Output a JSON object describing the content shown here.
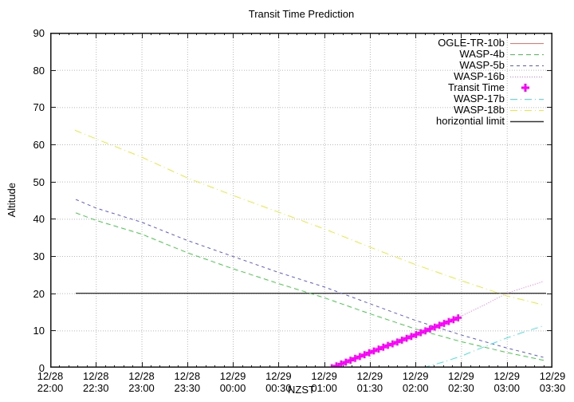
{
  "title": "Transit Time Prediction",
  "axes": {
    "ylabel": "Altitude",
    "xlabel": "NZST",
    "ylim": [
      0,
      90
    ],
    "y_tick_step": 10,
    "y_ticks": [
      "0",
      "10",
      "20",
      "30",
      "40",
      "50",
      "60",
      "70",
      "80",
      "90"
    ],
    "xlim_hours": [
      0,
      5.5
    ],
    "x_minor_step_hours": 0.1,
    "x_ticks": [
      {
        "t": 0.0,
        "date": "12/28",
        "time": "22:00"
      },
      {
        "t": 0.5,
        "date": "12/28",
        "time": "22:30"
      },
      {
        "t": 1.0,
        "date": "12/28",
        "time": "23:00"
      },
      {
        "t": 1.5,
        "date": "12/28",
        "time": "23:30"
      },
      {
        "t": 2.0,
        "date": "12/29",
        "time": "00:00"
      },
      {
        "t": 2.5,
        "date": "12/29",
        "time": "00:30"
      },
      {
        "t": 3.0,
        "date": "12/29",
        "time": "01:00"
      },
      {
        "t": 3.5,
        "date": "12/29",
        "time": "01:30"
      },
      {
        "t": 4.0,
        "date": "12/29",
        "time": "02:00"
      },
      {
        "t": 4.5,
        "date": "12/29",
        "time": "02:30"
      },
      {
        "t": 5.0,
        "date": "12/29",
        "time": "03:00"
      },
      {
        "t": 5.5,
        "date": "12/29",
        "time": "03:30"
      }
    ],
    "grid": true
  },
  "colors": {
    "background": "#ffffff",
    "border": "#1a1a1a",
    "grid": "#b8b8b8",
    "text": "#000000"
  },
  "legend": {
    "position": "top-right-inside",
    "items": [
      {
        "label": "OGLE-TR-10b",
        "series": "OGLE-TR-10b"
      },
      {
        "label": "WASP-4b",
        "series": "WASP-4b"
      },
      {
        "label": "WASP-5b",
        "series": "WASP-5b"
      },
      {
        "label": "WASP-16b",
        "series": "WASP-16b"
      },
      {
        "label": "Transit Time",
        "series": "Transit Time"
      },
      {
        "label": "WASP-17b",
        "series": "WASP-17b"
      },
      {
        "label": "WASP-18b",
        "series": "WASP-18b"
      },
      {
        "label": "horizontial limit",
        "series": "horizontial limit"
      }
    ]
  },
  "chart_data": {
    "type": "line",
    "x_unit": "hours after 12/28 22:00 NZST",
    "y_unit": "altitude (degrees)",
    "series": [
      {
        "name": "horizontial limit",
        "color": "#333333",
        "dash": "",
        "kind": "line",
        "width": 1.4,
        "points": [
          [
            0.28,
            20
          ],
          [
            5.43,
            20
          ]
        ]
      },
      {
        "name": "OGLE-TR-10b",
        "color": "#ff6e5f",
        "dash": "",
        "kind": "line",
        "width": 1,
        "points": []
      },
      {
        "name": "WASP-4b",
        "color": "#46cc49",
        "dash": "6,4",
        "kind": "line",
        "width": 1,
        "points": [
          [
            0.28,
            41.6
          ],
          [
            0.5,
            39.6
          ],
          [
            1.0,
            35.9
          ],
          [
            1.5,
            30.9
          ],
          [
            2.0,
            26.6
          ],
          [
            2.5,
            22.6
          ],
          [
            3.0,
            18.8
          ],
          [
            3.5,
            14.5
          ],
          [
            4.0,
            10.4
          ],
          [
            4.5,
            7.0
          ],
          [
            5.0,
            4.1
          ],
          [
            5.42,
            1.9
          ]
        ]
      },
      {
        "name": "WASP-5b",
        "color": "#5b5bd8",
        "dash": "4,4",
        "kind": "line",
        "width": 1,
        "points": [
          [
            0.28,
            45.2
          ],
          [
            0.5,
            42.9
          ],
          [
            1.0,
            39.1
          ],
          [
            1.5,
            34.2
          ],
          [
            2.0,
            29.9
          ],
          [
            2.5,
            25.6
          ],
          [
            3.0,
            21.7
          ],
          [
            3.5,
            17.2
          ],
          [
            4.0,
            12.7
          ],
          [
            4.5,
            8.8
          ],
          [
            5.0,
            5.3
          ],
          [
            5.4,
            2.8
          ]
        ]
      },
      {
        "name": "WASP-16b",
        "color": "#ee6bee",
        "dash": "1,2",
        "kind": "line",
        "width": 1,
        "points": [
          [
            3.08,
            0.0
          ],
          [
            3.5,
            4.3
          ],
          [
            4.0,
            8.9
          ],
          [
            4.46,
            13.4
          ],
          [
            4.75,
            16.8
          ],
          [
            5.0,
            20.0
          ],
          [
            5.39,
            23.1
          ]
        ]
      },
      {
        "name": "WASP-17b",
        "color": "#4ae2e2",
        "dash": "9,4,1,4",
        "kind": "line",
        "width": 1,
        "points": [
          [
            4.08,
            0.0
          ],
          [
            4.3,
            1.5
          ],
          [
            4.5,
            3.1
          ],
          [
            4.75,
            5.6
          ],
          [
            5.0,
            8.0
          ],
          [
            5.2,
            9.7
          ],
          [
            5.4,
            11.2
          ]
        ]
      },
      {
        "name": "WASP-18b",
        "color": "#e9e93e",
        "dash": "9,4,1,4",
        "kind": "line",
        "width": 1,
        "points": [
          [
            0.27,
            63.8
          ],
          [
            0.5,
            61.5
          ],
          [
            1.0,
            56.6
          ],
          [
            1.5,
            51.0
          ],
          [
            2.0,
            46.3
          ],
          [
            2.5,
            41.8
          ],
          [
            3.0,
            37.3
          ],
          [
            3.5,
            32.4
          ],
          [
            4.0,
            27.7
          ],
          [
            4.5,
            23.4
          ],
          [
            5.0,
            19.3
          ],
          [
            5.39,
            16.9
          ]
        ]
      },
      {
        "name": "Transit Time",
        "color": "#ff00ff",
        "kind": "points",
        "marker": "plus",
        "width": 2.6,
        "points": [
          [
            3.083,
            0.0
          ],
          [
            3.134,
            0.5
          ],
          [
            3.186,
            1.0
          ],
          [
            3.237,
            1.5
          ],
          [
            3.288,
            2.0
          ],
          [
            3.339,
            2.5
          ],
          [
            3.391,
            3.0
          ],
          [
            3.442,
            3.5
          ],
          [
            3.493,
            4.0
          ],
          [
            3.544,
            4.5
          ],
          [
            3.596,
            5.0
          ],
          [
            3.647,
            5.5
          ],
          [
            3.698,
            6.0
          ],
          [
            3.749,
            6.4
          ],
          [
            3.801,
            6.9
          ],
          [
            3.852,
            7.4
          ],
          [
            3.903,
            7.9
          ],
          [
            3.954,
            8.4
          ],
          [
            4.006,
            8.9
          ],
          [
            4.057,
            9.4
          ],
          [
            4.108,
            9.9
          ],
          [
            4.159,
            10.4
          ],
          [
            4.211,
            10.9
          ],
          [
            4.262,
            11.4
          ],
          [
            4.313,
            11.9
          ],
          [
            4.364,
            12.4
          ],
          [
            4.416,
            12.9
          ],
          [
            4.467,
            13.4
          ]
        ]
      }
    ]
  }
}
